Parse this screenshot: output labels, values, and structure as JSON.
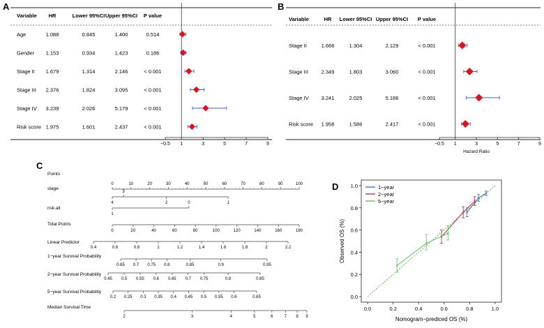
{
  "chart_data": [
    {
      "panel": "A",
      "type": "forest",
      "headers": [
        "Variable",
        "HR",
        "Lower 95%CI",
        "Upper 95%CI",
        "P value"
      ],
      "rows": [
        {
          "variable": "Age",
          "hr": "1.088",
          "lower": "0.845",
          "upper": "1.400",
          "p": "0.514",
          "hr_v": 1.088,
          "lo_v": 0.845,
          "up_v": 1.4
        },
        {
          "variable": "Gender",
          "hr": "1.153",
          "lower": "0.934",
          "upper": "1.423",
          "p": "0.186",
          "hr_v": 1.153,
          "lo_v": 0.934,
          "up_v": 1.423
        },
        {
          "variable": "Stage II",
          "hr": "1.679",
          "lower": "1.314",
          "upper": "2.146",
          "p": "< 0.001",
          "hr_v": 1.679,
          "lo_v": 1.314,
          "up_v": 2.146
        },
        {
          "variable": "Stage III",
          "hr": "2.376",
          "lower": "1.824",
          "upper": "3.095",
          "p": "< 0.001",
          "hr_v": 2.376,
          "lo_v": 1.824,
          "up_v": 3.095
        },
        {
          "variable": "Stage IV",
          "hr": "3.239",
          "lower": "2.026",
          "upper": "5.179",
          "p": "< 0.001",
          "hr_v": 3.239,
          "lo_v": 2.026,
          "up_v": 5.179
        },
        {
          "variable": "Risk score",
          "hr": "1.975",
          "lower": "1.601",
          "upper": "2.437",
          "p": "< 0.001",
          "hr_v": 1.975,
          "lo_v": 1.601,
          "up_v": 2.437
        }
      ],
      "xticks": [
        "−0.5",
        "1",
        "3",
        "5",
        "7",
        "9"
      ],
      "xtick_values": [
        -0.5,
        1,
        3,
        5,
        7,
        9
      ],
      "xlim": [
        -0.5,
        9
      ],
      "ref_line": 1,
      "xlabel": ""
    },
    {
      "panel": "B",
      "type": "forest",
      "headers": [
        "Variable",
        "HR",
        "Lower 95%CI",
        "Upper 95%CI",
        "P value"
      ],
      "rows": [
        {
          "variable": "Stage II",
          "hr": "1.666",
          "lower": "1.304",
          "upper": "2.129",
          "p": "< 0.001",
          "hr_v": 1.666,
          "lo_v": 1.304,
          "up_v": 2.129
        },
        {
          "variable": "Stage III",
          "hr": "2.349",
          "lower": "1.803",
          "upper": "3.060",
          "p": "< 0.001",
          "hr_v": 2.349,
          "lo_v": 1.803,
          "up_v": 3.06
        },
        {
          "variable": "Stage IV",
          "hr": "3.241",
          "lower": "2.025",
          "upper": "5.186",
          "p": "< 0.001",
          "hr_v": 3.241,
          "lo_v": 2.025,
          "up_v": 5.186
        },
        {
          "variable": "Risk score",
          "hr": "1.958",
          "lower": "1.586",
          "upper": "2.417",
          "p": "< 0.001",
          "hr_v": 1.958,
          "lo_v": 1.586,
          "up_v": 2.417
        }
      ],
      "xticks": [
        "−0.5",
        "1",
        "3",
        "5",
        "7",
        "9"
      ],
      "xtick_values": [
        -0.5,
        1,
        3,
        5,
        7,
        9
      ],
      "xlim": [
        -0.5,
        9
      ],
      "ref_line": 1,
      "xlabel": "Hazard Ratio"
    },
    {
      "panel": "C",
      "type": "nomogram",
      "scales": [
        {
          "name": "Points",
          "ticks": [
            {
              "label": "0",
              "v": 0
            },
            {
              "label": "10",
              "v": 10
            },
            {
              "label": "20",
              "v": 20
            },
            {
              "label": "30",
              "v": 30
            },
            {
              "label": "40",
              "v": 40
            },
            {
              "label": "50",
              "v": 50
            },
            {
              "label": "60",
              "v": 60
            },
            {
              "label": "70",
              "v": 70
            },
            {
              "label": "80",
              "v": 80
            },
            {
              "label": "90",
              "v": 90
            },
            {
              "label": "100",
              "v": 100
            }
          ],
          "label_pos": "above"
        },
        {
          "name": "stage",
          "ticks": [
            {
              "label": "4",
              "v": 0,
              "pos": "below"
            },
            {
              "label": "3",
              "v": 6,
              "pos": "above"
            },
            {
              "label": "2",
              "v": 29,
              "pos": "below"
            },
            {
              "label": "1",
              "v": 62,
              "pos": "below"
            }
          ],
          "line_end": 62
        },
        {
          "name": "risk.all",
          "ticks": [
            {
              "label": "1",
              "v": 0,
              "pos": "below"
            },
            {
              "label": "0",
              "v": 41,
              "pos": "above"
            }
          ],
          "line_end": 41
        },
        {
          "name": "Total Points",
          "ticks": [
            {
              "label": "0",
              "v": 0
            },
            {
              "label": "20",
              "v": 20
            },
            {
              "label": "40",
              "v": 40
            },
            {
              "label": "60",
              "v": 60
            },
            {
              "label": "80",
              "v": 80
            },
            {
              "label": "100",
              "v": 100
            },
            {
              "label": "120",
              "v": 120
            },
            {
              "label": "140",
              "v": 140
            },
            {
              "label": "160",
              "v": 160
            },
            {
              "label": "180",
              "v": 180
            }
          ],
          "range": [
            0,
            180
          ],
          "label_pos": "below"
        },
        {
          "name": "Linear Predictor",
          "ticks": [
            {
              "label": "0.4",
              "v": 0.4
            },
            {
              "label": "0.6",
              "v": 0.6
            },
            {
              "label": "0.8",
              "v": 0.8
            },
            {
              "label": "1",
              "v": 1.0
            },
            {
              "label": "1.2",
              "v": 1.2
            },
            {
              "label": "1.4",
              "v": 1.4
            },
            {
              "label": "1.6",
              "v": 1.6
            },
            {
              "label": "1.8",
              "v": 1.8
            },
            {
              "label": "2",
              "v": 2.0
            },
            {
              "label": "2.2",
              "v": 2.2
            }
          ],
          "label_pos": "below"
        },
        {
          "name": "1−year Survival Probability",
          "ticks": [
            {
              "label": "0.65",
              "v": 0
            },
            {
              "label": "0.7",
              "v": 1
            },
            {
              "label": "0.75",
              "v": 2
            },
            {
              "label": "0.8",
              "v": 3
            },
            {
              "label": "0.85",
              "v": 4.5
            },
            {
              "label": "0.9",
              "v": 6.5
            },
            {
              "label": "0.95",
              "v": 9.5
            }
          ],
          "label_pos": "below"
        },
        {
          "name": "2−year Survival Probability",
          "ticks": [
            {
              "label": "0.45",
              "v": 0
            },
            {
              "label": "0.5",
              "v": 1
            },
            {
              "label": "0.55",
              "v": 2
            },
            {
              "label": "0.6",
              "v": 3
            },
            {
              "label": "0.65",
              "v": 4
            },
            {
              "label": "0.7",
              "v": 5
            },
            {
              "label": "0.75",
              "v": 6
            },
            {
              "label": "0.8",
              "v": 7.5
            },
            {
              "label": "0.85",
              "v": 9.5
            }
          ],
          "label_pos": "below"
        },
        {
          "name": "5−year Survival Probability",
          "ticks": [
            {
              "label": "0.2",
              "v": 0
            },
            {
              "label": "0.25",
              "v": 1
            },
            {
              "label": "0.3",
              "v": 2
            },
            {
              "label": "0.35",
              "v": 3
            },
            {
              "label": "0.4",
              "v": 4
            },
            {
              "label": "0.45",
              "v": 5
            },
            {
              "label": "0.5",
              "v": 6
            },
            {
              "label": "0.55",
              "v": 7
            },
            {
              "label": "0.6",
              "v": 8
            },
            {
              "label": "0.65",
              "v": 9.5
            }
          ],
          "label_pos": "below"
        },
        {
          "name": "Median Survival Time",
          "ticks": [
            {
              "label": "2",
              "v": 0
            },
            {
              "label": "3",
              "v": 3.5
            },
            {
              "label": "4",
              "v": 5.5
            },
            {
              "label": "5",
              "v": 6.7
            },
            {
              "label": "6",
              "v": 7.6
            },
            {
              "label": "7",
              "v": 8.3
            },
            {
              "label": "8",
              "v": 8.9
            },
            {
              "label": "9",
              "v": 9.4
            }
          ],
          "label_pos": "below"
        }
      ]
    },
    {
      "panel": "D",
      "type": "line",
      "xlabel": "Nomogram−prediced OS (%)",
      "ylabel": "Observed OS (%)",
      "xlim": [
        -0.05,
        1.05
      ],
      "ylim": [
        -0.05,
        1.05
      ],
      "xticks": [
        "0.0",
        "0.2",
        "0.4",
        "0.6",
        "0.8",
        "1.0"
      ],
      "yticks": [
        "0.0",
        "0.2",
        "0.4",
        "0.6",
        "0.8",
        "1.0"
      ],
      "tick_values": [
        0,
        0.2,
        0.4,
        0.6,
        0.8,
        1.0
      ],
      "legend": "top-left",
      "series": [
        {
          "name": "1−year",
          "color": "#2b6cb0",
          "points": [
            {
              "x": 0.78,
              "y": 0.76,
              "lo": 0.72,
              "hi": 0.8
            },
            {
              "x": 0.87,
              "y": 0.89,
              "lo": 0.86,
              "hi": 0.92
            },
            {
              "x": 0.93,
              "y": 0.93,
              "lo": 0.91,
              "hi": 0.95
            }
          ]
        },
        {
          "name": "2−year",
          "color": "#b02a3f",
          "points": [
            {
              "x": 0.58,
              "y": 0.54,
              "lo": 0.48,
              "hi": 0.6
            },
            {
              "x": 0.75,
              "y": 0.76,
              "lo": 0.71,
              "hi": 0.81
            },
            {
              "x": 0.84,
              "y": 0.86,
              "lo": 0.82,
              "hi": 0.9
            }
          ]
        },
        {
          "name": "5−year",
          "color": "#58c25a",
          "points": [
            {
              "x": 0.23,
              "y": 0.28,
              "lo": 0.22,
              "hi": 0.34
            },
            {
              "x": 0.46,
              "y": 0.48,
              "lo": 0.42,
              "hi": 0.56
            },
            {
              "x": 0.63,
              "y": 0.57,
              "lo": 0.51,
              "hi": 0.64
            }
          ]
        }
      ],
      "ideal_line": true
    }
  ],
  "panel_labels": [
    "A",
    "B",
    "C",
    "D"
  ]
}
